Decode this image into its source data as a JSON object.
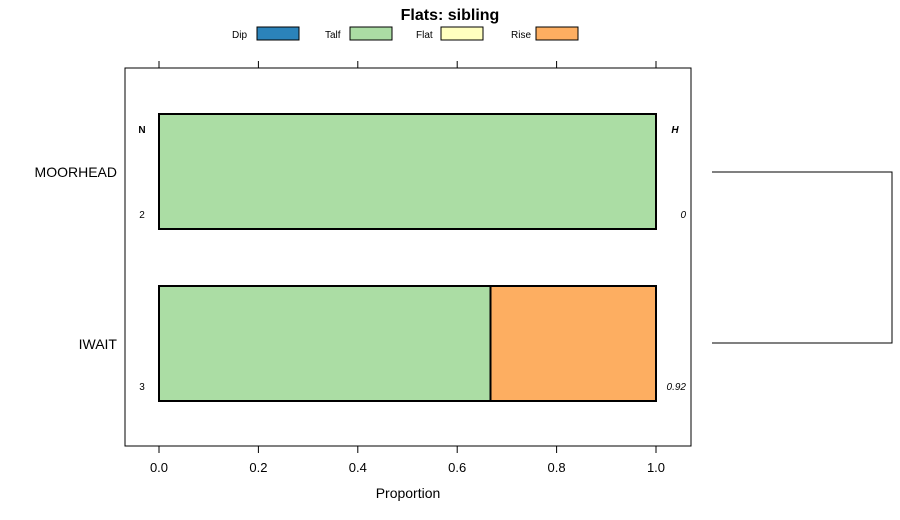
{
  "chart_data": {
    "type": "bar",
    "orientation": "horizontal",
    "stacked": true,
    "title": "Flats: sibling",
    "xlabel": "Proportion",
    "ylabel": "",
    "xlim": [
      -0.07,
      1.07
    ],
    "ticks": [
      0.0,
      0.2,
      0.4,
      0.6,
      0.8,
      1.0
    ],
    "tick_labels": [
      "0.0",
      "0.2",
      "0.4",
      "0.6",
      "0.8",
      "1.0"
    ],
    "legend": {
      "placement": "top",
      "entries": [
        {
          "name": "Dip",
          "color": "#2b83ba"
        },
        {
          "name": "Talf",
          "color": "#abdda4"
        },
        {
          "name": "Flat",
          "color": "#ffffbf"
        },
        {
          "name": "Rise",
          "color": "#fdae61"
        }
      ]
    },
    "categories": [
      "MOORHEAD",
      "IWAIT"
    ],
    "series": [
      {
        "name": "Dip",
        "values": [
          0,
          0
        ]
      },
      {
        "name": "Talf",
        "values": [
          1.0,
          0.667
        ]
      },
      {
        "name": "Flat",
        "values": [
          0,
          0
        ]
      },
      {
        "name": "Rise",
        "values": [
          0,
          0.333
        ]
      }
    ],
    "left_column": {
      "header": "N",
      "values": [
        "2",
        "3"
      ]
    },
    "right_column": {
      "header": "H",
      "values": [
        "0",
        "0.92"
      ]
    },
    "dendrogram": "two-leaf tree joining MOORHEAD and IWAIT"
  }
}
